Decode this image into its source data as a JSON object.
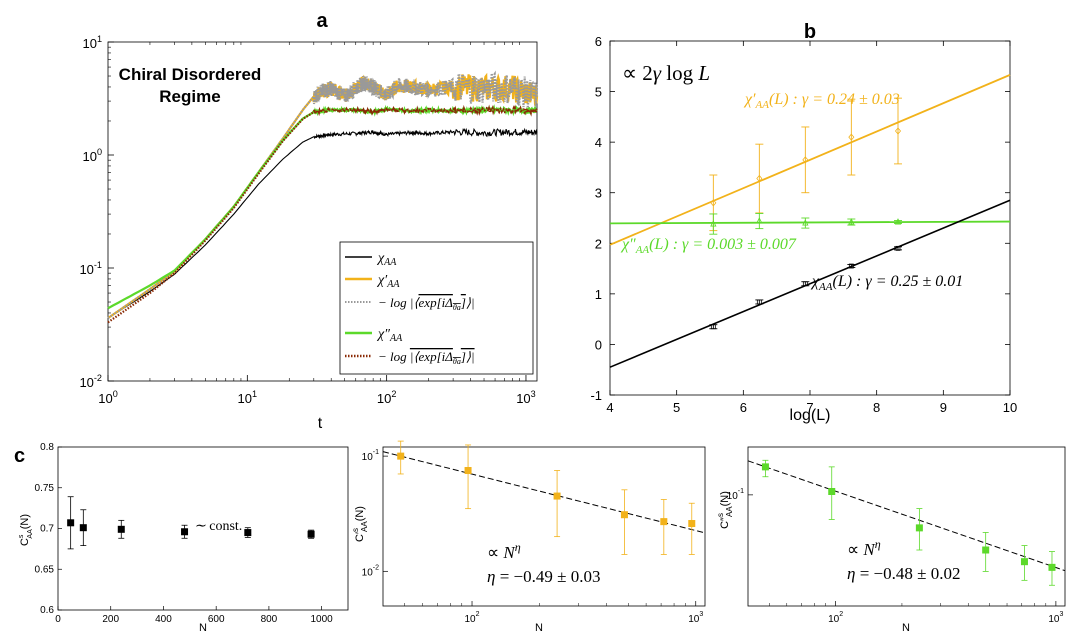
{
  "panel_letters": {
    "a": "a",
    "b": "b",
    "c": "c"
  },
  "colors": {
    "black": "#000000",
    "orange": "#f2b21a",
    "green": "#5cd92a",
    "gray_dotted": "#999999",
    "darkred_dotted": "#8a2a06"
  },
  "chart_data": [
    {
      "id": "a",
      "type": "line",
      "xscale": "log",
      "yscale": "log",
      "xlim": [
        1,
        1200
      ],
      "ylim": [
        0.01,
        10
      ],
      "xlabel": "t",
      "xticks": [
        {
          "v": 1,
          "b": "10",
          "e": "0"
        },
        {
          "v": 10,
          "b": "10",
          "e": "1"
        },
        {
          "v": 100,
          "b": "10",
          "e": "2"
        },
        {
          "v": 1000,
          "b": "10",
          "e": "3"
        }
      ],
      "yticks": [
        {
          "v": 0.01,
          "b": "10",
          "e": "-2"
        },
        {
          "v": 0.1,
          "b": "10",
          "e": "-1"
        },
        {
          "v": 1,
          "b": "10",
          "e": "0"
        },
        {
          "v": 10,
          "b": "10",
          "e": "1"
        }
      ],
      "annotation": [
        "Chiral Disordered",
        "Regime"
      ],
      "legend_position": "bottom-right",
      "series": [
        {
          "name": "χ_AA",
          "color_key": "black",
          "dash": "",
          "x": [
            1,
            2,
            3,
            5,
            8,
            12,
            18,
            25,
            30,
            40,
            60,
            80,
            100,
            150,
            200,
            300,
            500,
            800,
            1200
          ],
          "y": [
            0.036,
            0.062,
            0.088,
            0.16,
            0.3,
            0.55,
            0.92,
            1.3,
            1.45,
            1.52,
            1.55,
            1.6,
            1.52,
            1.58,
            1.55,
            1.6,
            1.57,
            1.6,
            1.58
          ],
          "noise": 0.03
        },
        {
          "name": "χ'_AA",
          "color_key": "orange",
          "dash": "",
          "x": [
            1,
            2,
            3,
            5,
            8,
            12,
            18,
            25,
            30,
            35,
            40,
            50,
            60,
            70,
            80,
            100,
            120,
            150,
            200,
            300,
            500,
            800,
            1200
          ],
          "y": [
            0.036,
            0.065,
            0.093,
            0.18,
            0.35,
            0.7,
            1.4,
            2.5,
            3.3,
            3.7,
            3.9,
            3.3,
            3.9,
            4.4,
            4.0,
            3.4,
            4.1,
            4.0,
            3.8,
            4.0,
            3.9,
            3.9,
            3.3
          ],
          "noise": 0.12
        },
        {
          "name": "−log|⟨exp[iΔθa]⟩|",
          "color_key": "gray_dotted",
          "dash": "1.5,1.5",
          "x": [
            1,
            2,
            3,
            5,
            8,
            12,
            18,
            25,
            30,
            35,
            40,
            50,
            60,
            70,
            80,
            100,
            120,
            150,
            200,
            300,
            500,
            800,
            1200
          ],
          "y": [
            0.036,
            0.065,
            0.093,
            0.18,
            0.35,
            0.7,
            1.4,
            2.5,
            3.3,
            3.7,
            3.9,
            3.3,
            3.9,
            4.4,
            4.0,
            3.4,
            4.1,
            4.0,
            3.8,
            4.0,
            3.9,
            3.9,
            3.3
          ],
          "noise": 0.14
        },
        {
          "name": "χ''_AA",
          "color_key": "green",
          "dash": "",
          "x": [
            1,
            2,
            3,
            5,
            8,
            12,
            18,
            25,
            30,
            40,
            60,
            80,
            100,
            150,
            200,
            300,
            500,
            800,
            1200
          ],
          "y": [
            0.044,
            0.07,
            0.095,
            0.18,
            0.35,
            0.7,
            1.35,
            2.1,
            2.4,
            2.5,
            2.5,
            2.4,
            2.55,
            2.45,
            2.5,
            2.45,
            2.5,
            2.5,
            2.45
          ],
          "noise": 0.02
        },
        {
          "name": "−log|⟨exp[iΔθa]⟩|",
          "color_key": "darkred_dotted",
          "dash": "1.5,1.5",
          "x": [
            1,
            2,
            3,
            5,
            8,
            12,
            18,
            25,
            30,
            40,
            60,
            80,
            100,
            150,
            200,
            300,
            500,
            800,
            1200
          ],
          "y": [
            0.033,
            0.06,
            0.09,
            0.175,
            0.34,
            0.68,
            1.33,
            2.08,
            2.4,
            2.5,
            2.5,
            2.4,
            2.55,
            2.45,
            2.5,
            2.45,
            2.5,
            2.5,
            2.45
          ],
          "noise": 0.02
        }
      ]
    },
    {
      "id": "b",
      "type": "line+errorbar",
      "xlim": [
        4,
        10
      ],
      "ylim": [
        -1,
        6
      ],
      "xlabel": "log(L)",
      "xticks": [
        4,
        5,
        6,
        7,
        8,
        9,
        10
      ],
      "yticks": [
        -1,
        0,
        1,
        2,
        3,
        4,
        5,
        6
      ],
      "headline": "∝ 2γ log L",
      "series": [
        {
          "name": "χ'_AA(L)",
          "label_text": "χ'_AA(L) : γ = 0.24 ± 0.03",
          "color_key": "orange",
          "fit": {
            "slope": 0.56,
            "intercept": -0.27
          },
          "marker": "diamond",
          "x": [
            5.55,
            6.24,
            6.93,
            7.62,
            8.32
          ],
          "y": [
            2.8,
            3.28,
            3.65,
            4.1,
            4.22
          ],
          "err": [
            0.55,
            0.68,
            0.65,
            0.75,
            0.65
          ]
        },
        {
          "name": "χ''_AA(L)",
          "label_text": "χ''_AA(L) : γ = 0.003 ± 0.007",
          "color_key": "green",
          "fit": {
            "slope": 0.006,
            "intercept": 2.37
          },
          "marker": "triangle",
          "x": [
            5.55,
            6.24,
            6.93,
            7.62,
            8.32
          ],
          "y": [
            2.38,
            2.44,
            2.4,
            2.42,
            2.42
          ],
          "err": [
            0.2,
            0.15,
            0.1,
            0.06,
            0.03
          ]
        },
        {
          "name": "χ_AA(L)",
          "label_text": "χ_AA(L) : γ = 0.25 ± 0.01",
          "color_key": "black",
          "fit": {
            "slope": 0.55,
            "intercept": -2.65
          },
          "marker": "square",
          "x": [
            5.55,
            6.24,
            6.93,
            7.62,
            8.32
          ],
          "y": [
            0.35,
            0.84,
            1.2,
            1.55,
            1.9
          ],
          "err": [
            0.04,
            0.04,
            0.04,
            0.03,
            0.03
          ]
        }
      ]
    },
    {
      "id": "c1",
      "type": "scatter+errorbar",
      "xlim": [
        0,
        1100
      ],
      "ylim": [
        0.6,
        0.8
      ],
      "xlabel": "N",
      "ylabel": "C^s_AA(N)",
      "xticks": [
        0,
        200,
        400,
        600,
        800,
        1000
      ],
      "yticks": [
        0.6,
        0.65,
        0.7,
        0.75,
        0.8
      ],
      "annotation": "∼ const.",
      "color_key": "black",
      "x": [
        48,
        96,
        240,
        480,
        720,
        960
      ],
      "y": [
        0.707,
        0.701,
        0.699,
        0.696,
        0.695,
        0.693
      ],
      "err": [
        0.032,
        0.022,
        0.011,
        0.008,
        0.006,
        0.005
      ]
    },
    {
      "id": "c2",
      "type": "scatter+errorbar",
      "xscale": "log",
      "yscale": "log",
      "xlim": [
        40,
        1100
      ],
      "ylim": [
        0.005,
        0.12
      ],
      "xlabel": "N",
      "ylabel": "C'^s_AA(N)",
      "xticks": [
        {
          "v": 100,
          "b": "10",
          "e": "2"
        },
        {
          "v": 1000,
          "b": "10",
          "e": "3"
        }
      ],
      "yticks": [
        {
          "v": 0.01,
          "b": "10",
          "e": "-2"
        },
        {
          "v": 0.1,
          "b": "10",
          "e": "-1"
        }
      ],
      "annotation_line1": "∝ N^η",
      "annotation_line2": "η = −0.49 ± 0.03",
      "fit": {
        "exponent": -0.49,
        "x0": 48,
        "y0": 0.1
      },
      "color_key": "orange",
      "x": [
        48,
        96,
        240,
        480,
        720,
        960
      ],
      "y": [
        0.1,
        0.075,
        0.045,
        0.031,
        0.027,
        0.026
      ],
      "err_up": [
        0.035,
        0.05,
        0.03,
        0.02,
        0.015,
        0.013
      ],
      "err_down": [
        0.03,
        0.04,
        0.025,
        0.017,
        0.013,
        0.012
      ]
    },
    {
      "id": "c3",
      "type": "scatter+errorbar",
      "xscale": "log",
      "yscale": "log",
      "xlim": [
        40,
        1100
      ],
      "ylim": [
        0.02,
        0.2
      ],
      "xlabel": "N",
      "ylabel": "C''^s_AA(N)",
      "xticks": [
        {
          "v": 100,
          "b": "10",
          "e": "2"
        },
        {
          "v": 1000,
          "b": "10",
          "e": "3"
        }
      ],
      "yticks": [
        {
          "v": 0.1,
          "b": "10",
          "e": "-1"
        }
      ],
      "annotation_line1": "∝ N^η",
      "annotation_line2": "η = −0.48 ± 0.02",
      "fit": {
        "exponent": -0.48,
        "x0": 48,
        "y0": 0.15
      },
      "color_key": "green",
      "x": [
        48,
        96,
        240,
        480,
        720,
        960
      ],
      "y": [
        0.15,
        0.105,
        0.062,
        0.045,
        0.038,
        0.035
      ],
      "err_up": [
        0.015,
        0.045,
        0.02,
        0.013,
        0.01,
        0.009
      ],
      "err_down": [
        0.02,
        0.035,
        0.017,
        0.012,
        0.009,
        0.008
      ]
    }
  ]
}
